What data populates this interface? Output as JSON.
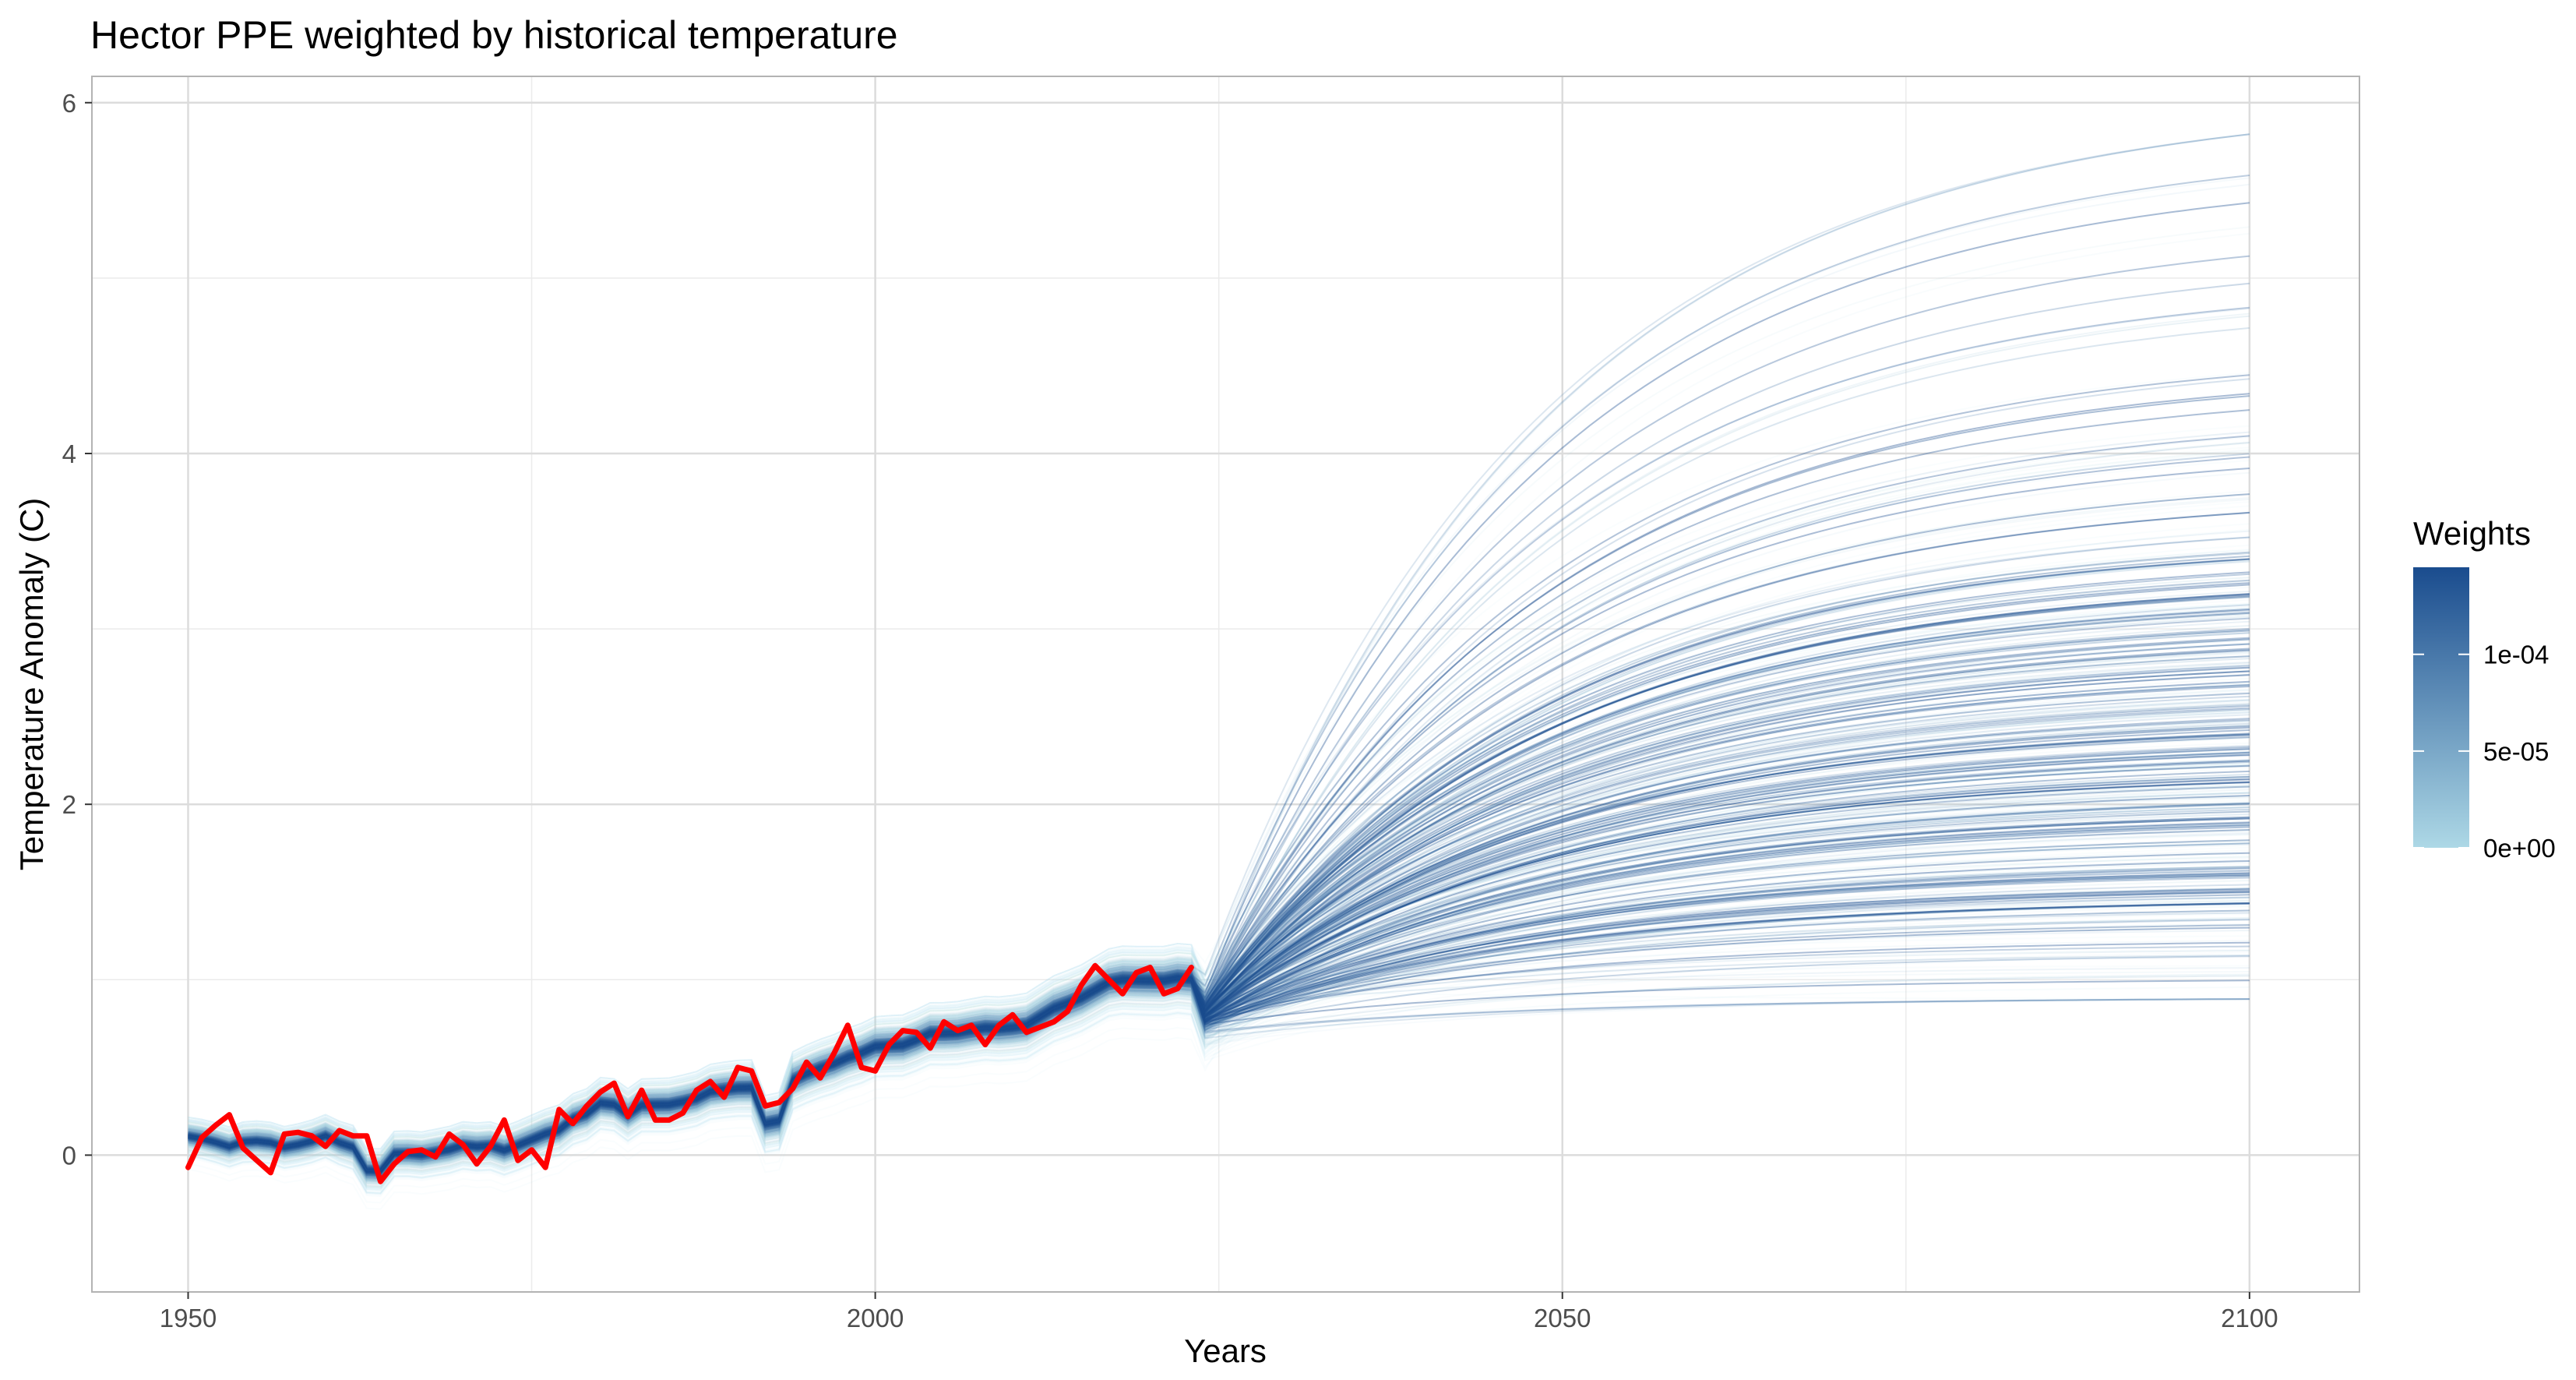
{
  "chart_data": {
    "type": "line",
    "title": "Hector PPE weighted by historical temperature",
    "xlabel": "Years",
    "ylabel": "Temperature Anomaly (C)",
    "xlim": [
      1943,
      2108
    ],
    "ylim": [
      -0.78,
      6.15
    ],
    "x_ticks": [
      1950,
      2000,
      2050,
      2100
    ],
    "x_tick_labels": [
      "1950",
      "2000",
      "2050",
      "2100"
    ],
    "y_ticks": [
      0,
      2,
      4,
      6
    ],
    "y_tick_labels": [
      "0",
      "2",
      "4",
      "6"
    ],
    "grid": true,
    "legend": {
      "title": "Weights",
      "position": "right",
      "type": "colorbar",
      "range": [
        0,
        0.000145
      ],
      "ticks": [
        0,
        5e-05,
        0.0001
      ],
      "tick_labels": [
        "0e+00",
        "5e-05",
        "1e-04"
      ],
      "colors": [
        "#add8e6",
        "#1a4c8e"
      ]
    },
    "series": [
      {
        "color": "#ff0000",
        "x": [
          1950,
          1951,
          1952,
          1953,
          1954,
          1955,
          1956,
          1957,
          1958,
          1959,
          1960,
          1961,
          1962,
          1963,
          1964,
          1965,
          1966,
          1967,
          1968,
          1969,
          1970,
          1971,
          1972,
          1973,
          1974,
          1975,
          1976,
          1977,
          1978,
          1979,
          1980,
          1981,
          1982,
          1983,
          1984,
          1985,
          1986,
          1987,
          1988,
          1989,
          1990,
          1991,
          1992,
          1993,
          1994,
          1995,
          1996,
          1997,
          1998,
          1999,
          2000,
          2001,
          2002,
          2003,
          2004,
          2005,
          2006,
          2007,
          2008,
          2009,
          2010,
          2011,
          2012,
          2013,
          2014,
          2015,
          2016,
          2017,
          2018,
          2019,
          2020,
          2021,
          2022,
          2023
        ],
        "values": [
          -0.07,
          0.1,
          0.17,
          0.23,
          0.04,
          -0.03,
          -0.1,
          0.12,
          0.13,
          0.11,
          0.05,
          0.14,
          0.11,
          0.11,
          -0.15,
          -0.05,
          0.02,
          0.03,
          -0.01,
          0.12,
          0.06,
          -0.05,
          0.05,
          0.2,
          -0.03,
          0.03,
          -0.07,
          0.26,
          0.18,
          0.28,
          0.36,
          0.41,
          0.22,
          0.37,
          0.2,
          0.2,
          0.24,
          0.37,
          0.42,
          0.33,
          0.5,
          0.48,
          0.28,
          0.3,
          0.38,
          0.53,
          0.44,
          0.58,
          0.74,
          0.5,
          0.48,
          0.63,
          0.71,
          0.7,
          0.61,
          0.76,
          0.71,
          0.74,
          0.63,
          0.74,
          0.8,
          0.7,
          0.73,
          0.76,
          0.82,
          0.97,
          1.08,
          1.0,
          0.92,
          1.04,
          1.07,
          0.92,
          0.95,
          1.07
        ]
      }
    ],
    "ensemble": {
      "member_count": 400,
      "x_range": [
        1950,
        2100
      ],
      "hist_end_center": 0.73,
      "end_value_range": [
        0.89,
        5.82
      ],
      "end_value_center": 2.3
    }
  }
}
